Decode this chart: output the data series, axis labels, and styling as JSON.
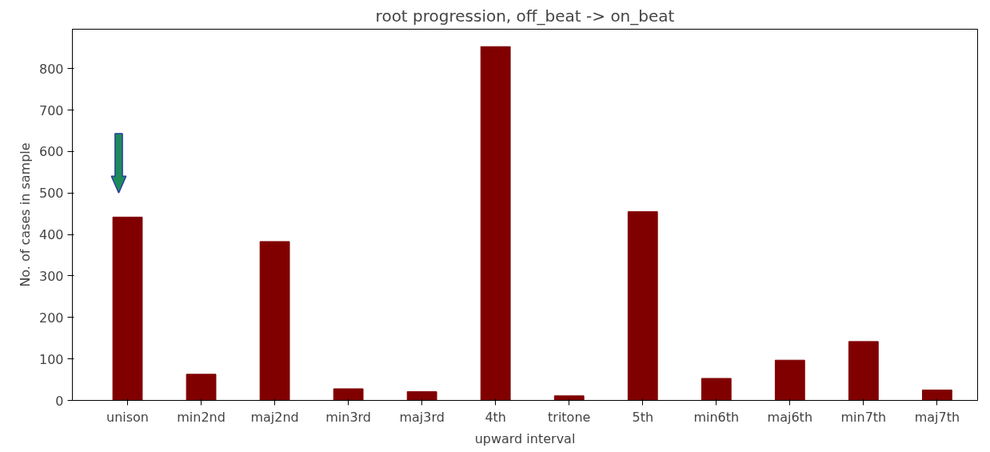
{
  "chart_data": {
    "type": "bar",
    "title": "root progression, off_beat -> on_beat",
    "xlabel": "upward interval",
    "ylabel": "No. of cases in sample",
    "categories": [
      "unison",
      "min2nd",
      "maj2nd",
      "min3rd",
      "maj3rd",
      "4th",
      "tritone",
      "5th",
      "min6th",
      "maj6th",
      "min7th",
      "maj7th"
    ],
    "values": [
      442,
      63,
      383,
      28,
      21,
      853,
      11,
      455,
      53,
      97,
      142,
      25
    ],
    "color": "#800000",
    "ylim": [
      0,
      895
    ],
    "yticks": [
      0,
      100,
      200,
      300,
      400,
      500,
      600,
      700,
      800
    ],
    "grid": false
  }
}
